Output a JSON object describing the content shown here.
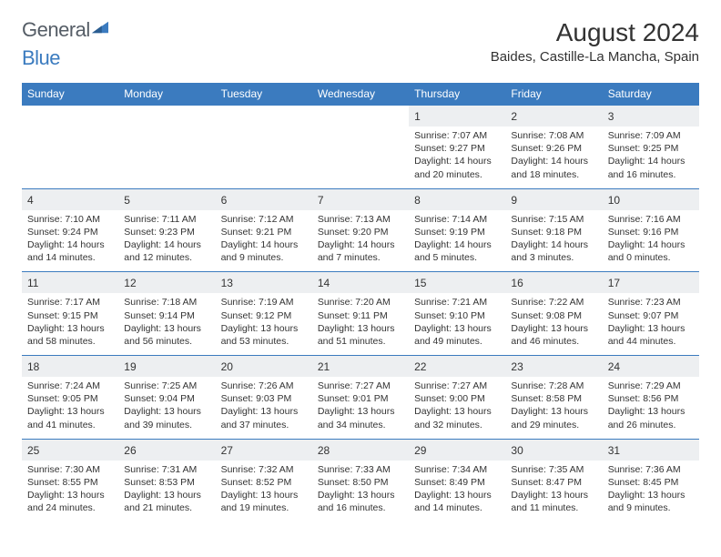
{
  "logo": {
    "general": "General",
    "blue": "Blue"
  },
  "title": "August 2024",
  "location": "Baides, Castille-La Mancha, Spain",
  "colors": {
    "header_bg": "#3b7bbf",
    "header_fg": "#ffffff",
    "daynum_bg": "#edeff1",
    "border": "#3b7bbf",
    "text": "#333333",
    "logo_gray": "#555d66",
    "logo_blue": "#3b7bbf",
    "page_bg": "#ffffff"
  },
  "dayNames": [
    "Sunday",
    "Monday",
    "Tuesday",
    "Wednesday",
    "Thursday",
    "Friday",
    "Saturday"
  ],
  "weeks": [
    [
      null,
      null,
      null,
      null,
      {
        "n": "1",
        "sr": "Sunrise: 7:07 AM",
        "ss": "Sunset: 9:27 PM",
        "d1": "Daylight: 14 hours",
        "d2": "and 20 minutes."
      },
      {
        "n": "2",
        "sr": "Sunrise: 7:08 AM",
        "ss": "Sunset: 9:26 PM",
        "d1": "Daylight: 14 hours",
        "d2": "and 18 minutes."
      },
      {
        "n": "3",
        "sr": "Sunrise: 7:09 AM",
        "ss": "Sunset: 9:25 PM",
        "d1": "Daylight: 14 hours",
        "d2": "and 16 minutes."
      }
    ],
    [
      {
        "n": "4",
        "sr": "Sunrise: 7:10 AM",
        "ss": "Sunset: 9:24 PM",
        "d1": "Daylight: 14 hours",
        "d2": "and 14 minutes."
      },
      {
        "n": "5",
        "sr": "Sunrise: 7:11 AM",
        "ss": "Sunset: 9:23 PM",
        "d1": "Daylight: 14 hours",
        "d2": "and 12 minutes."
      },
      {
        "n": "6",
        "sr": "Sunrise: 7:12 AM",
        "ss": "Sunset: 9:21 PM",
        "d1": "Daylight: 14 hours",
        "d2": "and 9 minutes."
      },
      {
        "n": "7",
        "sr": "Sunrise: 7:13 AM",
        "ss": "Sunset: 9:20 PM",
        "d1": "Daylight: 14 hours",
        "d2": "and 7 minutes."
      },
      {
        "n": "8",
        "sr": "Sunrise: 7:14 AM",
        "ss": "Sunset: 9:19 PM",
        "d1": "Daylight: 14 hours",
        "d2": "and 5 minutes."
      },
      {
        "n": "9",
        "sr": "Sunrise: 7:15 AM",
        "ss": "Sunset: 9:18 PM",
        "d1": "Daylight: 14 hours",
        "d2": "and 3 minutes."
      },
      {
        "n": "10",
        "sr": "Sunrise: 7:16 AM",
        "ss": "Sunset: 9:16 PM",
        "d1": "Daylight: 14 hours",
        "d2": "and 0 minutes."
      }
    ],
    [
      {
        "n": "11",
        "sr": "Sunrise: 7:17 AM",
        "ss": "Sunset: 9:15 PM",
        "d1": "Daylight: 13 hours",
        "d2": "and 58 minutes."
      },
      {
        "n": "12",
        "sr": "Sunrise: 7:18 AM",
        "ss": "Sunset: 9:14 PM",
        "d1": "Daylight: 13 hours",
        "d2": "and 56 minutes."
      },
      {
        "n": "13",
        "sr": "Sunrise: 7:19 AM",
        "ss": "Sunset: 9:12 PM",
        "d1": "Daylight: 13 hours",
        "d2": "and 53 minutes."
      },
      {
        "n": "14",
        "sr": "Sunrise: 7:20 AM",
        "ss": "Sunset: 9:11 PM",
        "d1": "Daylight: 13 hours",
        "d2": "and 51 minutes."
      },
      {
        "n": "15",
        "sr": "Sunrise: 7:21 AM",
        "ss": "Sunset: 9:10 PM",
        "d1": "Daylight: 13 hours",
        "d2": "and 49 minutes."
      },
      {
        "n": "16",
        "sr": "Sunrise: 7:22 AM",
        "ss": "Sunset: 9:08 PM",
        "d1": "Daylight: 13 hours",
        "d2": "and 46 minutes."
      },
      {
        "n": "17",
        "sr": "Sunrise: 7:23 AM",
        "ss": "Sunset: 9:07 PM",
        "d1": "Daylight: 13 hours",
        "d2": "and 44 minutes."
      }
    ],
    [
      {
        "n": "18",
        "sr": "Sunrise: 7:24 AM",
        "ss": "Sunset: 9:05 PM",
        "d1": "Daylight: 13 hours",
        "d2": "and 41 minutes."
      },
      {
        "n": "19",
        "sr": "Sunrise: 7:25 AM",
        "ss": "Sunset: 9:04 PM",
        "d1": "Daylight: 13 hours",
        "d2": "and 39 minutes."
      },
      {
        "n": "20",
        "sr": "Sunrise: 7:26 AM",
        "ss": "Sunset: 9:03 PM",
        "d1": "Daylight: 13 hours",
        "d2": "and 37 minutes."
      },
      {
        "n": "21",
        "sr": "Sunrise: 7:27 AM",
        "ss": "Sunset: 9:01 PM",
        "d1": "Daylight: 13 hours",
        "d2": "and 34 minutes."
      },
      {
        "n": "22",
        "sr": "Sunrise: 7:27 AM",
        "ss": "Sunset: 9:00 PM",
        "d1": "Daylight: 13 hours",
        "d2": "and 32 minutes."
      },
      {
        "n": "23",
        "sr": "Sunrise: 7:28 AM",
        "ss": "Sunset: 8:58 PM",
        "d1": "Daylight: 13 hours",
        "d2": "and 29 minutes."
      },
      {
        "n": "24",
        "sr": "Sunrise: 7:29 AM",
        "ss": "Sunset: 8:56 PM",
        "d1": "Daylight: 13 hours",
        "d2": "and 26 minutes."
      }
    ],
    [
      {
        "n": "25",
        "sr": "Sunrise: 7:30 AM",
        "ss": "Sunset: 8:55 PM",
        "d1": "Daylight: 13 hours",
        "d2": "and 24 minutes."
      },
      {
        "n": "26",
        "sr": "Sunrise: 7:31 AM",
        "ss": "Sunset: 8:53 PM",
        "d1": "Daylight: 13 hours",
        "d2": "and 21 minutes."
      },
      {
        "n": "27",
        "sr": "Sunrise: 7:32 AM",
        "ss": "Sunset: 8:52 PM",
        "d1": "Daylight: 13 hours",
        "d2": "and 19 minutes."
      },
      {
        "n": "28",
        "sr": "Sunrise: 7:33 AM",
        "ss": "Sunset: 8:50 PM",
        "d1": "Daylight: 13 hours",
        "d2": "and 16 minutes."
      },
      {
        "n": "29",
        "sr": "Sunrise: 7:34 AM",
        "ss": "Sunset: 8:49 PM",
        "d1": "Daylight: 13 hours",
        "d2": "and 14 minutes."
      },
      {
        "n": "30",
        "sr": "Sunrise: 7:35 AM",
        "ss": "Sunset: 8:47 PM",
        "d1": "Daylight: 13 hours",
        "d2": "and 11 minutes."
      },
      {
        "n": "31",
        "sr": "Sunrise: 7:36 AM",
        "ss": "Sunset: 8:45 PM",
        "d1": "Daylight: 13 hours",
        "d2": "and 9 minutes."
      }
    ]
  ]
}
